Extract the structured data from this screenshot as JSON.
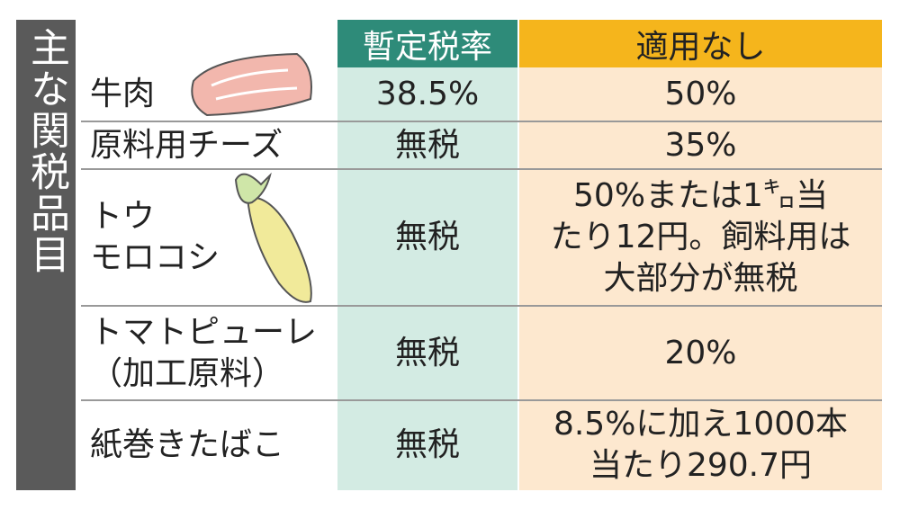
{
  "side_title": "主な関税品目",
  "headers": [
    "暫定税率",
    "適用なし"
  ],
  "rows": [
    {
      "item": [
        "牛肉"
      ],
      "provisional": [
        "38.5%"
      ],
      "none": [
        "50%"
      ]
    },
    {
      "item": [
        "原料用チーズ"
      ],
      "provisional": [
        "無税"
      ],
      "none": [
        "35%"
      ]
    },
    {
      "item": [
        "トウ",
        "モロコシ"
      ],
      "provisional": [
        "無税"
      ],
      "none": [
        "50%または1㌔当",
        "たり12円。飼料用は",
        "大部分が無税"
      ]
    },
    {
      "item": [
        "トマトピューレ",
        "（加工原料）"
      ],
      "provisional": [
        "無税"
      ],
      "none": [
        "20%"
      ]
    },
    {
      "item": [
        "紙巻きたばこ"
      ],
      "provisional": [
        "無税"
      ],
      "none": [
        "8.5%に加え1000本",
        "当たり290.7円"
      ]
    }
  ]
}
